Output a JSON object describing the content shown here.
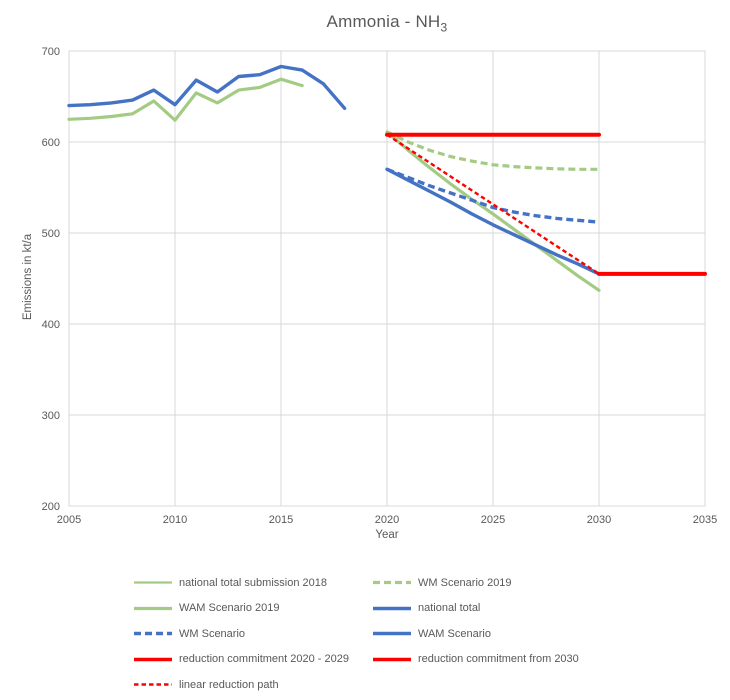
{
  "page": {
    "background": "#FFFFFF",
    "text_color": "#595959"
  },
  "chart_data": {
    "type": "line",
    "title_main": "Ammonia - NH",
    "title_sub": "3",
    "xlabel": "Year",
    "ylabel": "Emissions in kt/a",
    "xlim": [
      2005,
      2035
    ],
    "ylim": [
      200,
      700
    ],
    "xticks": [
      2005,
      2010,
      2015,
      2020,
      2025,
      2030,
      2035
    ],
    "yticks": [
      200,
      300,
      400,
      500,
      600,
      700
    ],
    "grid": true,
    "axis_color": "#D9D9D9",
    "text_color": "#595959",
    "legend_position": "bottom-left two-column",
    "series": [
      {
        "name": "national total submission 2018",
        "color": "#A3CB84",
        "dash": "solid",
        "width": 3.2,
        "points": [
          [
            2005,
            625
          ],
          [
            2006,
            626
          ],
          [
            2007,
            628
          ],
          [
            2008,
            631
          ],
          [
            2009,
            645
          ],
          [
            2010,
            624
          ],
          [
            2011,
            654
          ],
          [
            2012,
            643
          ],
          [
            2013,
            657
          ],
          [
            2014,
            660
          ],
          [
            2015,
            669
          ],
          [
            2016,
            662
          ]
        ]
      },
      {
        "name": "WM Scenario 2019",
        "color": "#A3CB84",
        "dash": "dash",
        "width": 3.2,
        "points": [
          [
            2020,
            611
          ],
          [
            2021,
            600
          ],
          [
            2022,
            591
          ],
          [
            2023,
            584
          ],
          [
            2024,
            579
          ],
          [
            2025,
            575
          ],
          [
            2026,
            573
          ],
          [
            2027,
            571.5
          ],
          [
            2028,
            570.5
          ],
          [
            2029,
            570
          ],
          [
            2030,
            570
          ]
        ]
      },
      {
        "name": "WAM Scenario 2019",
        "color": "#A3CB84",
        "dash": "solid",
        "width": 3.2,
        "points": [
          [
            2020,
            611
          ],
          [
            2021,
            591
          ],
          [
            2022,
            572
          ],
          [
            2023,
            554
          ],
          [
            2024,
            537
          ],
          [
            2025,
            521
          ],
          [
            2026,
            504
          ],
          [
            2027,
            487
          ],
          [
            2028,
            470
          ],
          [
            2029,
            453
          ],
          [
            2030,
            437
          ]
        ]
      },
      {
        "name": "national total",
        "color": "#4472C4",
        "dash": "solid",
        "width": 3.4,
        "points": [
          [
            2005,
            640
          ],
          [
            2006,
            641
          ],
          [
            2007,
            643
          ],
          [
            2008,
            646
          ],
          [
            2009,
            657
          ],
          [
            2010,
            641
          ],
          [
            2011,
            668
          ],
          [
            2012,
            655
          ],
          [
            2013,
            672
          ],
          [
            2014,
            674
          ],
          [
            2015,
            683
          ],
          [
            2016,
            679
          ],
          [
            2017,
            664
          ],
          [
            2018,
            637
          ]
        ]
      },
      {
        "name": "WM Scenario",
        "color": "#4472C4",
        "dash": "dash",
        "width": 3.4,
        "points": [
          [
            2020,
            570
          ],
          [
            2021,
            561
          ],
          [
            2022,
            552
          ],
          [
            2023,
            544
          ],
          [
            2024,
            536
          ],
          [
            2025,
            528
          ],
          [
            2026,
            523
          ],
          [
            2027,
            519
          ],
          [
            2028,
            516
          ],
          [
            2029,
            514
          ],
          [
            2030,
            512
          ]
        ]
      },
      {
        "name": "WAM Scenario",
        "color": "#4472C4",
        "dash": "solid",
        "width": 3.4,
        "points": [
          [
            2020,
            570
          ],
          [
            2021,
            558
          ],
          [
            2022,
            546
          ],
          [
            2023,
            534
          ],
          [
            2024,
            521
          ],
          [
            2025,
            509
          ],
          [
            2026,
            498
          ],
          [
            2027,
            487
          ],
          [
            2028,
            476
          ],
          [
            2029,
            466
          ],
          [
            2030,
            455
          ]
        ]
      },
      {
        "name": "reduction commitment 2020 - 2029",
        "color": "#FF0000",
        "dash": "solid",
        "width": 4,
        "points": [
          [
            2020,
            608
          ],
          [
            2030,
            608
          ]
        ]
      },
      {
        "name": "reduction commitment from 2030",
        "color": "#FF0000",
        "dash": "solid",
        "width": 4,
        "points": [
          [
            2030,
            455
          ],
          [
            2035,
            455
          ]
        ]
      },
      {
        "name": "linear reduction path",
        "color": "#FF0000",
        "dash": "dash-fine",
        "width": 2.4,
        "points": [
          [
            2020,
            608
          ],
          [
            2030,
            455
          ]
        ]
      }
    ],
    "legend": {
      "items": [
        {
          "label": "national total submission 2018",
          "color": "#A3CB84",
          "dash": "solid",
          "width": 2.2
        },
        {
          "label": "WM Scenario 2019",
          "color": "#A3CB84",
          "dash": "dash",
          "width": 3.2
        },
        {
          "label": "WAM Scenario 2019",
          "color": "#A3CB84",
          "dash": "solid",
          "width": 3.2
        },
        {
          "label": "national total",
          "color": "#4472C4",
          "dash": "solid",
          "width": 3.4
        },
        {
          "label": "WM Scenario",
          "color": "#4472C4",
          "dash": "dash",
          "width": 3.4
        },
        {
          "label": "WAM Scenario",
          "color": "#4472C4",
          "dash": "solid",
          "width": 3.4
        },
        {
          "label": "reduction commitment 2020 - 2029",
          "color": "#FF0000",
          "dash": "solid",
          "width": 3.6
        },
        {
          "label": "reduction commitment from 2030",
          "color": "#FF0000",
          "dash": "solid",
          "width": 3.6
        },
        {
          "label": "linear reduction path",
          "color": "#FF0000",
          "dash": "dash-fine",
          "width": 2.4
        }
      ]
    }
  }
}
